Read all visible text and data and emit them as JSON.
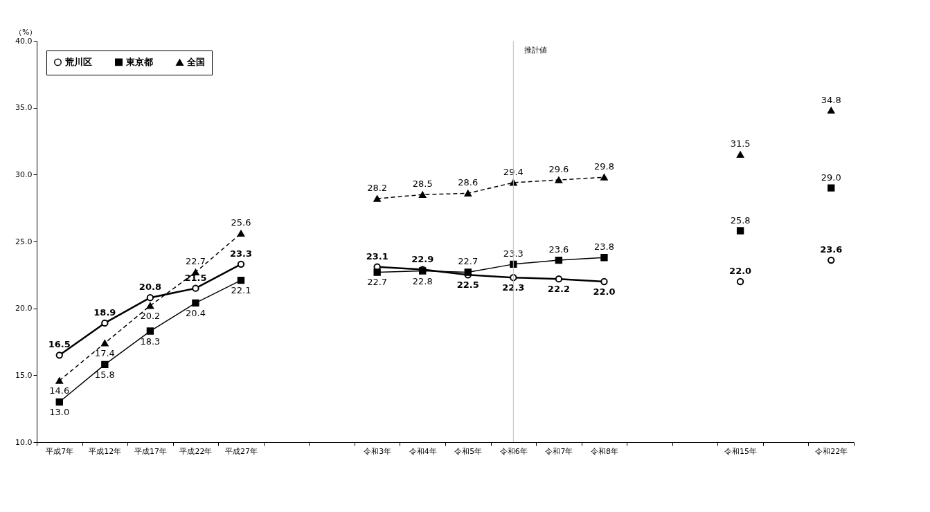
{
  "chart_data": {
    "type": "line",
    "ylabel": "（%）",
    "categories": [
      "平成7年",
      "平成12年",
      "平成17年",
      "平成22年",
      "平成27年",
      null,
      null,
      "令和3年",
      "令和4年",
      "令和5年",
      "令和6年",
      "令和7年",
      "令和8年",
      null,
      null,
      "令和15年",
      null,
      "令和22年"
    ],
    "series": [
      {
        "name": "荒川区",
        "color": "#000000",
        "marker": "circle",
        "line_style": "solid",
        "values": [
          16.5,
          18.9,
          20.8,
          21.5,
          23.3,
          null,
          null,
          23.1,
          22.9,
          22.5,
          22.3,
          22.2,
          22.0,
          null,
          null,
          22.0,
          null,
          23.6
        ],
        "value_labels": [
          "16.5",
          "18.9",
          "20.8",
          "21.5",
          "23.3",
          null,
          null,
          "23.1",
          "22.9",
          "22.5",
          "22.3",
          "22.2",
          "22.0",
          null,
          null,
          "22.0",
          null,
          "23.6"
        ]
      },
      {
        "name": "東京都",
        "color": "#000000",
        "marker": "square",
        "line_style": "solid",
        "values": [
          13.0,
          15.8,
          18.3,
          20.4,
          22.1,
          null,
          null,
          22.7,
          22.8,
          22.7,
          23.3,
          23.6,
          23.8,
          null,
          null,
          25.8,
          null,
          29.0
        ],
        "value_labels": [
          "13.0",
          "15.8",
          "18.3",
          "20.4",
          "22.1",
          null,
          null,
          "22.7",
          "22.8",
          "22.7",
          "23.3",
          "23.6",
          "23.8",
          null,
          null,
          "25.8",
          null,
          "29.0"
        ]
      },
      {
        "name": "全国",
        "color": "#000000",
        "marker": "triangle",
        "line_style": "dashed",
        "values": [
          14.6,
          17.4,
          20.2,
          22.7,
          25.6,
          null,
          null,
          28.2,
          28.5,
          28.6,
          29.4,
          29.6,
          29.8,
          null,
          null,
          31.5,
          null,
          34.8
        ],
        "value_labels": [
          "14.6",
          "17.4",
          "20.2",
          "22.7",
          "25.6",
          null,
          null,
          "28.2",
          "28.5",
          "28.6",
          "29.4",
          "29.6",
          "29.8",
          null,
          null,
          "31.5",
          null,
          "34.8"
        ]
      }
    ],
    "ylim": [
      10,
      40
    ],
    "yticks": [
      {
        "value": 10,
        "label": "10.0"
      },
      {
        "value": 15,
        "label": "15.0"
      },
      {
        "value": 20,
        "label": "20.0"
      },
      {
        "value": 25,
        "label": "25.0"
      },
      {
        "value": 30,
        "label": "30.0"
      },
      {
        "value": 35,
        "label": "35.0"
      },
      {
        "value": 40,
        "label": "40.0"
      }
    ],
    "ref_lines": [
      {
        "axis": "x",
        "value": "令和6年",
        "label": "推計値",
        "color": "#c0c0c0"
      }
    ],
    "grid": false,
    "legend": "top left"
  }
}
